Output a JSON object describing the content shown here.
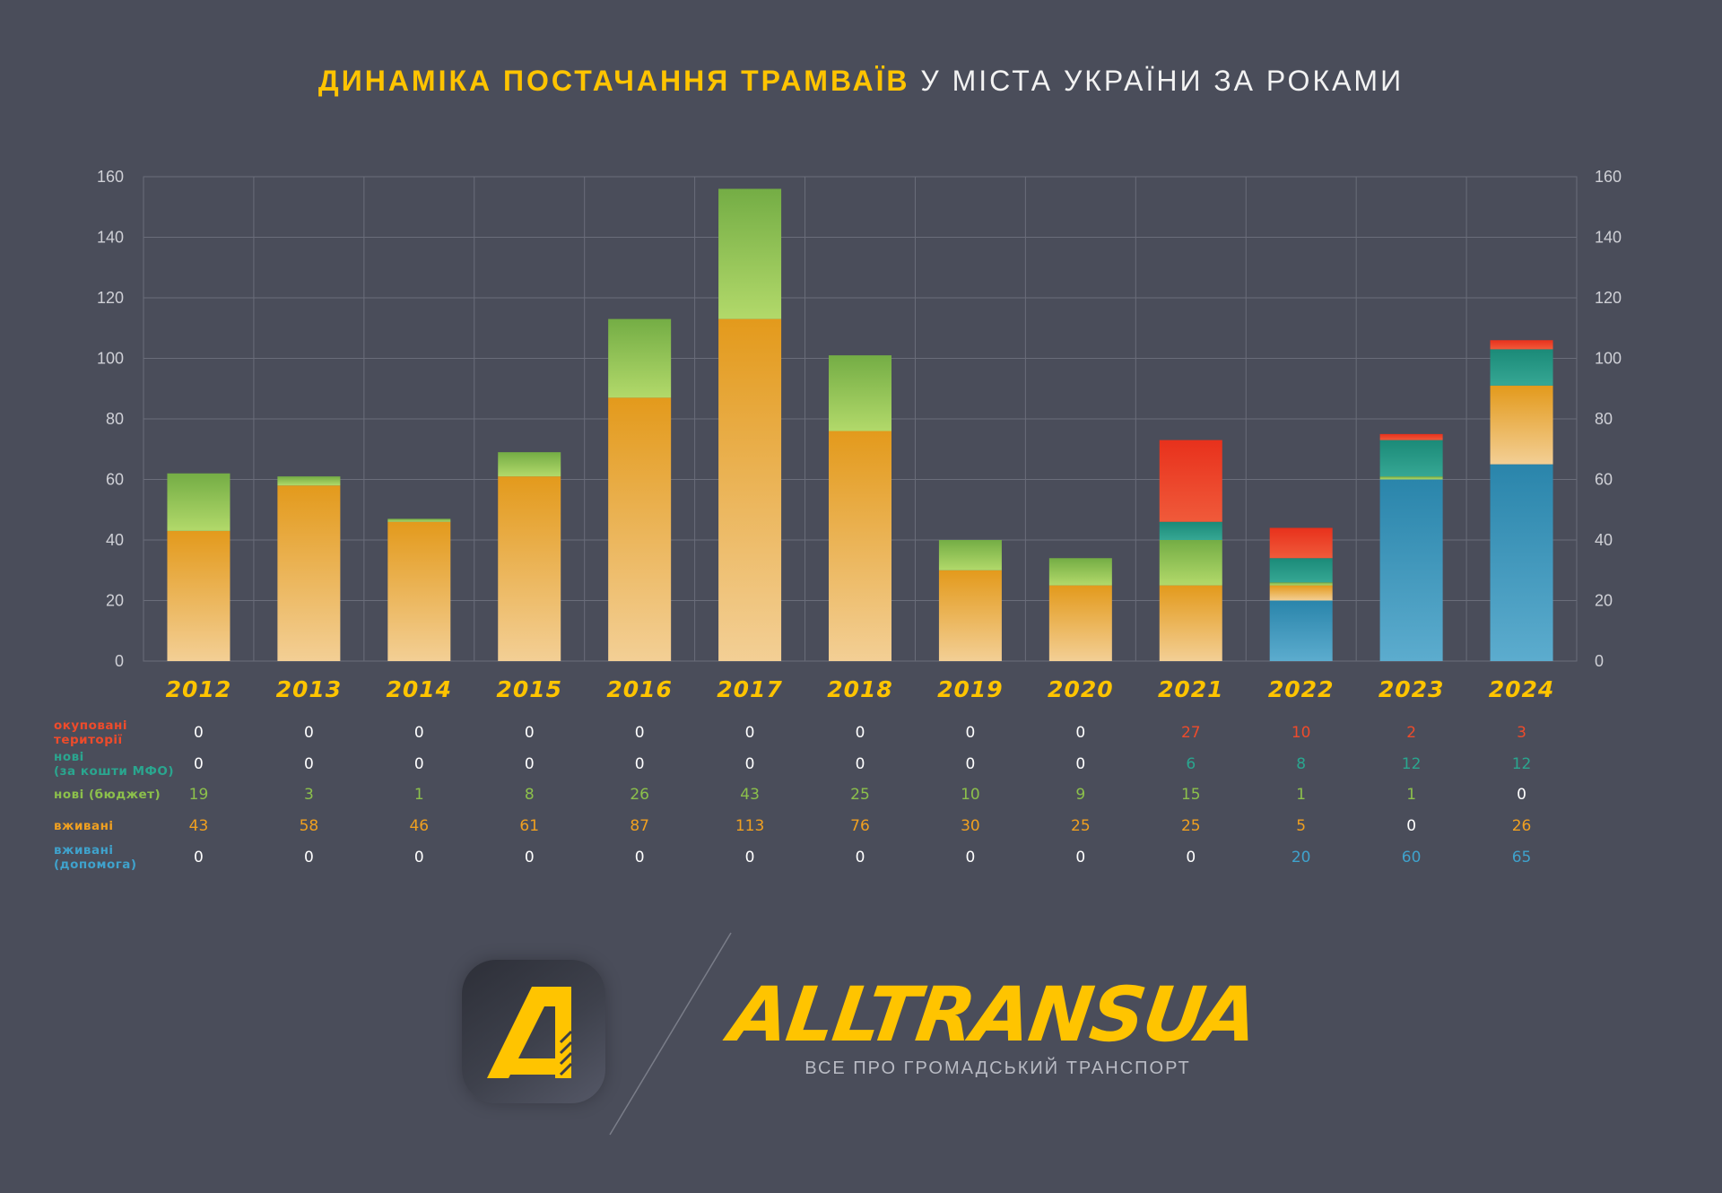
{
  "title": {
    "highlight": "ДИНАМІКА ПОСТАЧАННЯ ТРАМВАЇВ",
    "rest": " У МІСТА УКРАЇНИ ЗА РОКАМИ"
  },
  "chart_data": {
    "type": "bar",
    "stacked": true,
    "categories": [
      "2012",
      "2013",
      "2014",
      "2015",
      "2016",
      "2017",
      "2018",
      "2019",
      "2020",
      "2021",
      "2022",
      "2023",
      "2024"
    ],
    "ylim": [
      0,
      160
    ],
    "yticks": [
      0,
      20,
      40,
      60,
      80,
      100,
      120,
      140,
      160
    ],
    "grid": true,
    "stack_order_bottom_to_top": [
      "used_aid",
      "used",
      "new_budget",
      "new_mfo",
      "occupied"
    ],
    "series": [
      {
        "key": "occupied",
        "name": "окуповані території",
        "label_lines": [
          "окуповані",
          "території"
        ],
        "color": "#ee4b2b",
        "values": [
          0,
          0,
          0,
          0,
          0,
          0,
          0,
          0,
          0,
          27,
          10,
          2,
          3
        ]
      },
      {
        "key": "new_mfo",
        "name": "нові (за кошти МФО)",
        "label_lines": [
          "нові",
          "(за кошти МФО)"
        ],
        "color": "#2aa68f",
        "values": [
          0,
          0,
          0,
          0,
          0,
          0,
          0,
          0,
          0,
          6,
          8,
          12,
          12
        ]
      },
      {
        "key": "new_budget",
        "name": "нові (бюджет)",
        "label_lines": [
          "нові (бюджет)"
        ],
        "color": "#8cc04b",
        "values": [
          19,
          3,
          1,
          8,
          26,
          43,
          25,
          10,
          9,
          15,
          1,
          1,
          0
        ]
      },
      {
        "key": "used",
        "name": "вживані",
        "label_lines": [
          "вживані"
        ],
        "color": "#f0a020",
        "values": [
          43,
          58,
          46,
          61,
          87,
          113,
          76,
          30,
          25,
          25,
          5,
          0,
          26
        ]
      },
      {
        "key": "used_aid",
        "name": "вживані (допомога)",
        "label_lines": [
          "вживані",
          "(допомога)"
        ],
        "color": "#3fa2cc",
        "values": [
          0,
          0,
          0,
          0,
          0,
          0,
          0,
          0,
          0,
          0,
          20,
          60,
          65
        ]
      }
    ],
    "table_row_order": [
      "occupied",
      "new_mfo",
      "new_budget",
      "used",
      "used_aid"
    ]
  },
  "colors": {
    "background": "#4a4d5a",
    "accent": "#ffc400",
    "zero_value_text": "#ffffff",
    "grid": "#6a6d7a"
  },
  "brand": {
    "name": "ALLTRANSUA",
    "tagline": "ВСЕ ПРО ГРОМАДСЬКИЙ ТРАНСПОРТ",
    "logo_icon": "alltransua-a-logo-icon"
  }
}
